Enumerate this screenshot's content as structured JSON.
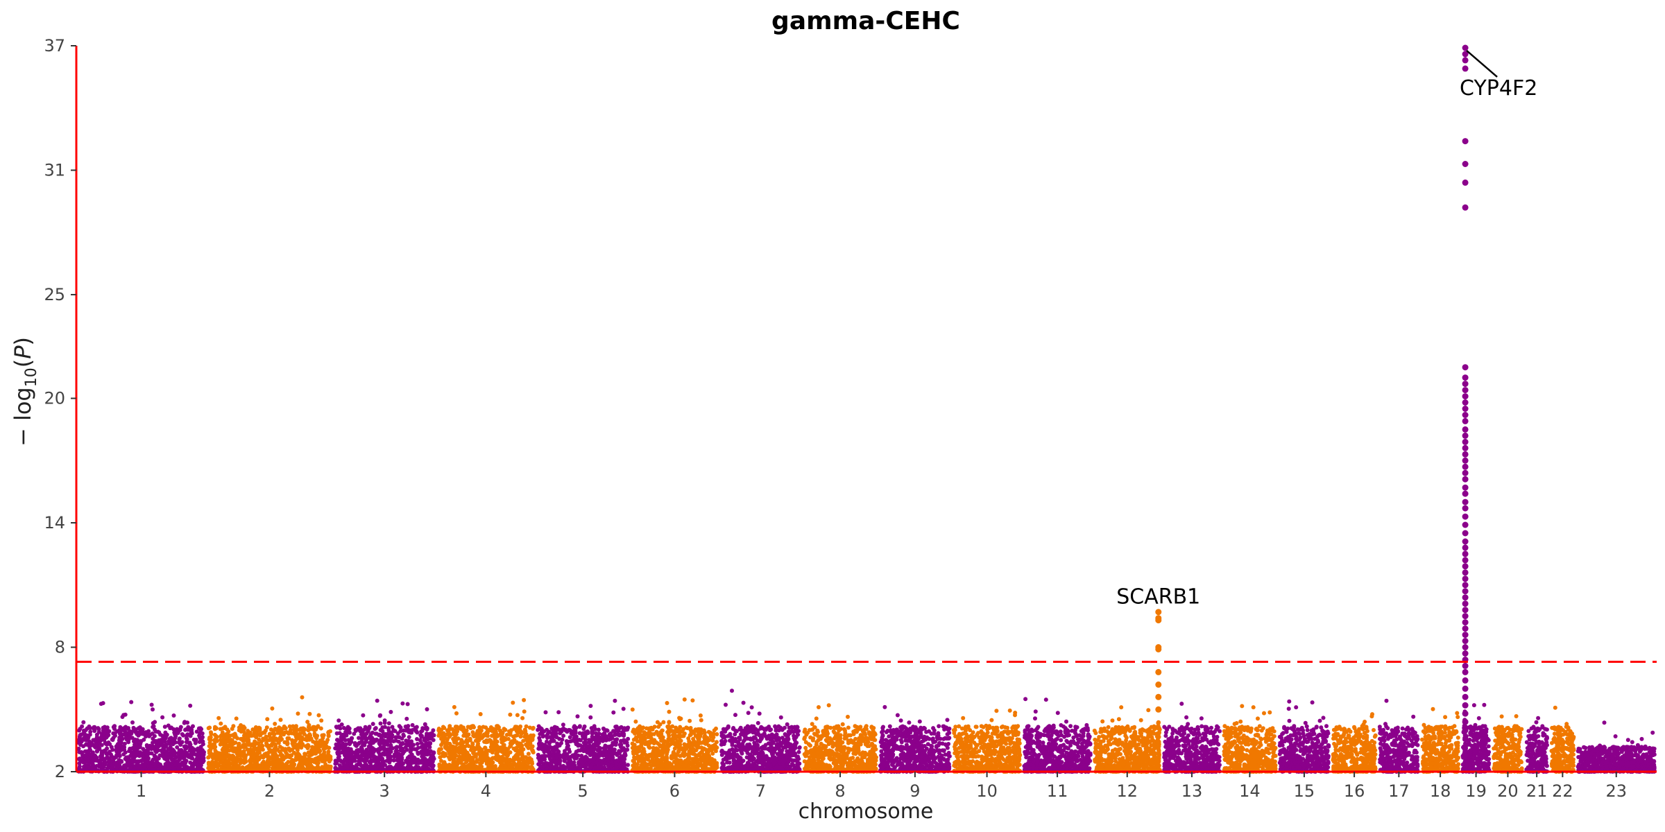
{
  "chart_data": {
    "type": "scatter",
    "title": "gamma-CEHC",
    "xlabel": "chromosome",
    "ylabel": "−log10(P)",
    "ylim": [
      2,
      37
    ],
    "yticks": [
      2,
      8,
      14,
      20,
      25,
      31,
      37
    ],
    "grid": false,
    "legend": "none",
    "significance_threshold": 7.3,
    "colors": {
      "odd": "#8B008B",
      "even": "#F07800",
      "threshold": "#FF0000",
      "axis": "#FF0000"
    },
    "chromosomes": [
      {
        "label": "1",
        "length": 249
      },
      {
        "label": "2",
        "length": 243
      },
      {
        "label": "3",
        "length": 198
      },
      {
        "label": "4",
        "length": 191
      },
      {
        "label": "5",
        "length": 181
      },
      {
        "label": "6",
        "length": 171
      },
      {
        "label": "7",
        "length": 159
      },
      {
        "label": "8",
        "length": 146
      },
      {
        "label": "9",
        "length": 141
      },
      {
        "label": "10",
        "length": 135
      },
      {
        "label": "11",
        "length": 135
      },
      {
        "label": "12",
        "length": 133
      },
      {
        "label": "13",
        "length": 115
      },
      {
        "label": "14",
        "length": 107
      },
      {
        "label": "15",
        "length": 102
      },
      {
        "label": "16",
        "length": 90
      },
      {
        "label": "17",
        "length": 81
      },
      {
        "label": "18",
        "length": 78
      },
      {
        "label": "19",
        "length": 59
      },
      {
        "label": "20",
        "length": 63
      },
      {
        "label": "21",
        "length": 48
      },
      {
        "label": "22",
        "length": 51
      },
      {
        "label": "23",
        "length": 155
      }
    ],
    "peaks": [
      {
        "chromosome": "12",
        "max_y": 9.7,
        "label": "SCARB1",
        "values": [
          9.7,
          9.4,
          9.3,
          8.0,
          7.9,
          6.8,
          6.2,
          5.6,
          5.0
        ]
      },
      {
        "chromosome": "19",
        "max_y": 36.9,
        "label": "CYP4F2",
        "values": [
          36.9,
          36.6,
          36.3,
          35.9,
          32.4,
          31.3,
          30.4,
          29.2,
          21.5,
          21.0,
          20.7,
          20.4,
          20.1,
          19.8,
          19.5,
          19.2,
          18.9,
          18.5,
          18.2,
          17.9,
          17.6,
          17.3,
          17.0,
          16.7,
          16.4,
          16.1,
          15.7,
          15.4,
          15.0,
          14.7,
          14.3,
          13.9,
          13.5,
          13.1,
          12.8,
          12.5,
          12.2,
          11.9,
          11.6,
          11.3,
          11.0,
          10.7,
          10.4,
          10.1,
          9.8,
          9.5,
          9.2,
          8.9,
          8.6,
          8.3,
          8.0,
          7.7,
          7.4,
          7.1,
          6.8,
          6.4,
          6.0,
          5.6,
          5.2,
          4.8,
          4.4,
          4.0
        ]
      }
    ],
    "annotations": [
      {
        "name": "SCARB1",
        "label": "SCARB1"
      },
      {
        "name": "CYP4F2",
        "label": "CYP4F2"
      }
    ],
    "background": "Thousands of variants per chromosome with -log10(P) between 2 and about 6.5, alternating colors by chromosome"
  }
}
